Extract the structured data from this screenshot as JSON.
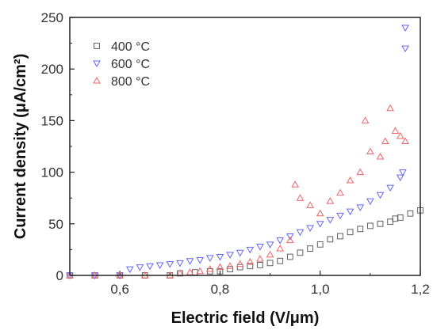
{
  "chart_data": {
    "type": "scatter",
    "xlabel": "Electric field (V/μm)",
    "ylabel": "Current density (μA/cm²)",
    "xlim": [
      0.5,
      1.2
    ],
    "ylim": [
      0,
      250
    ],
    "xticks": [
      0.6,
      0.8,
      1.0,
      1.2
    ],
    "xtick_labels": [
      "0,6",
      "0,8",
      "1,0",
      "1,2"
    ],
    "yticks": [
      0,
      50,
      100,
      150,
      200,
      250
    ],
    "ytick_labels": [
      "0",
      "50",
      "100",
      "150",
      "200",
      "250"
    ],
    "grid": false,
    "legend_position": "top-left",
    "series": [
      {
        "name": "400 °C",
        "marker": "square",
        "color": "#606060",
        "x": [
          0.5,
          0.55,
          0.6,
          0.65,
          0.7,
          0.72,
          0.75,
          0.78,
          0.8,
          0.82,
          0.84,
          0.86,
          0.88,
          0.9,
          0.92,
          0.94,
          0.96,
          0.98,
          1.0,
          1.02,
          1.04,
          1.06,
          1.08,
          1.1,
          1.12,
          1.14,
          1.15,
          1.16,
          1.18,
          1.2
        ],
        "y": [
          0,
          0,
          0,
          0,
          0,
          2,
          3,
          4,
          4,
          6,
          8,
          9,
          10,
          12,
          14,
          18,
          22,
          26,
          30,
          35,
          38,
          42,
          45,
          48,
          50,
          52,
          55,
          56,
          60,
          63
        ]
      },
      {
        "name": "600 °C",
        "marker": "triangle-down",
        "color": "#6666ee",
        "x": [
          0.5,
          0.55,
          0.6,
          0.62,
          0.64,
          0.66,
          0.68,
          0.7,
          0.72,
          0.74,
          0.76,
          0.78,
          0.8,
          0.82,
          0.84,
          0.86,
          0.88,
          0.9,
          0.92,
          0.94,
          0.96,
          0.98,
          1.0,
          1.02,
          1.04,
          1.06,
          1.08,
          1.1,
          1.12,
          1.14,
          1.16,
          1.165,
          1.17,
          1.17
        ],
        "y": [
          0,
          0,
          0,
          6,
          8,
          9,
          10,
          11,
          12,
          14,
          15,
          17,
          18,
          20,
          22,
          25,
          28,
          30,
          34,
          38,
          42,
          46,
          50,
          54,
          58,
          62,
          66,
          72,
          78,
          85,
          95,
          100,
          240,
          220
        ]
      },
      {
        "name": "800 °C",
        "marker": "triangle-up",
        "color": "#ee6666",
        "x": [
          0.5,
          0.55,
          0.6,
          0.65,
          0.7,
          0.72,
          0.74,
          0.76,
          0.78,
          0.8,
          0.82,
          0.84,
          0.86,
          0.88,
          0.9,
          0.92,
          0.94,
          0.95,
          0.96,
          0.98,
          1.0,
          1.02,
          1.04,
          1.06,
          1.08,
          1.09,
          1.1,
          1.12,
          1.13,
          1.14,
          1.15,
          1.16,
          1.17
        ],
        "y": [
          0,
          0,
          0,
          0,
          0,
          2,
          3,
          4,
          6,
          8,
          9,
          11,
          13,
          16,
          20,
          26,
          34,
          88,
          75,
          68,
          60,
          72,
          80,
          92,
          100,
          150,
          120,
          115,
          130,
          162,
          140,
          135,
          130
        ]
      }
    ]
  }
}
